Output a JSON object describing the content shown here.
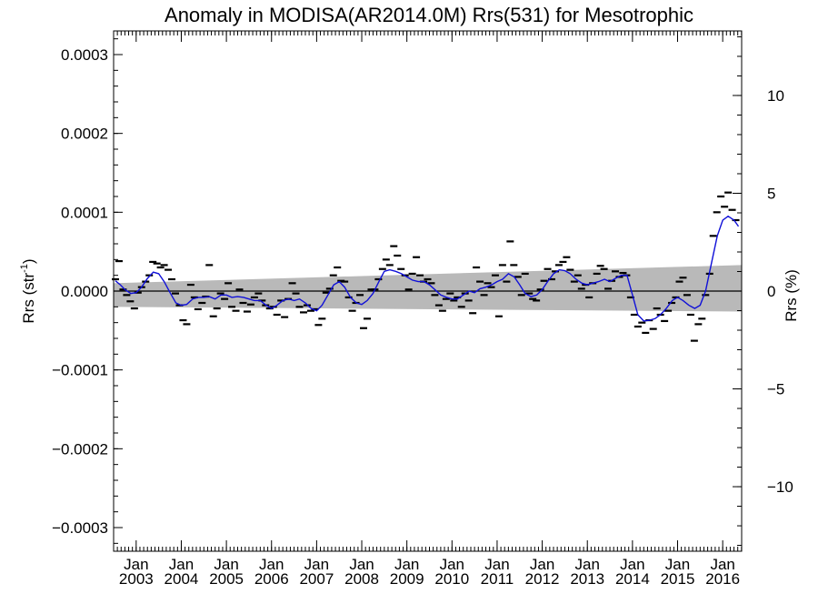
{
  "chart_data": {
    "type": "scatter",
    "title": "Anomaly in MODISA(AR2014.0M) Rrs(531) for Mesotrophic",
    "ylabel_left": "Rrs (str",
    "ylabel_left_sup": "-1",
    "ylabel_left_end": ")",
    "ylabel_right": "Rrs (%)",
    "xlim": [
      2002.5,
      2016.42
    ],
    "ylim": [
      -0.00033,
      0.00033
    ],
    "ylim_right": [
      -13.3,
      13.3
    ],
    "left_ticks": [
      {
        "value": 0.0003,
        "label": "0.0003"
      },
      {
        "value": 0.0002,
        "label": "0.0002"
      },
      {
        "value": 0.0001,
        "label": "0.0001"
      },
      {
        "value": 0.0,
        "label": "0.0000"
      },
      {
        "value": -0.0001,
        "label": "−0.0001"
      },
      {
        "value": -0.0002,
        "label": "−0.0002"
      },
      {
        "value": -0.0003,
        "label": "−0.0003"
      }
    ],
    "right_ticks": [
      {
        "value": 10,
        "label": "10"
      },
      {
        "value": 5,
        "label": "5"
      },
      {
        "value": 0,
        "label": "0"
      },
      {
        "value": -5,
        "label": "−5"
      },
      {
        "value": -10,
        "label": "−10"
      }
    ],
    "x_ticks": [
      {
        "value": 2003,
        "month": "Jan",
        "year": "2003"
      },
      {
        "value": 2004,
        "month": "Jan",
        "year": "2004"
      },
      {
        "value": 2005,
        "month": "Jan",
        "year": "2005"
      },
      {
        "value": 2006,
        "month": "Jan",
        "year": "2006"
      },
      {
        "value": 2007,
        "month": "Jan",
        "year": "2007"
      },
      {
        "value": 2008,
        "month": "Jan",
        "year": "2008"
      },
      {
        "value": 2009,
        "month": "Jan",
        "year": "2009"
      },
      {
        "value": 2010,
        "month": "Jan",
        "year": "2010"
      },
      {
        "value": 2011,
        "month": "Jan",
        "year": "2011"
      },
      {
        "value": 2012,
        "month": "Jan",
        "year": "2012"
      },
      {
        "value": 2013,
        "month": "Jan",
        "year": "2013"
      },
      {
        "value": 2014,
        "month": "Jan",
        "year": "2014"
      },
      {
        "value": 2015,
        "month": "Jan",
        "year": "2015"
      },
      {
        "value": 2016,
        "month": "Jan",
        "year": "2016"
      }
    ],
    "monthly_anomalies": [
      {
        "t": 2002.54,
        "y": 1.5e-05
      },
      {
        "t": 2002.62,
        "y": 3.8e-05
      },
      {
        "t": 2002.71,
        "y": 2e-06
      },
      {
        "t": 2002.79,
        "y": -5e-06
      },
      {
        "t": 2002.87,
        "y": -1.3e-05
      },
      {
        "t": 2002.96,
        "y": -2.2e-05
      },
      {
        "t": 2003.04,
        "y": -2e-06
      },
      {
        "t": 2003.12,
        "y": 5e-06
      },
      {
        "t": 2003.21,
        "y": 1.2e-05
      },
      {
        "t": 2003.29,
        "y": 2e-05
      },
      {
        "t": 2003.37,
        "y": 3.7e-05
      },
      {
        "t": 2003.46,
        "y": 3.5e-05
      },
      {
        "t": 2003.54,
        "y": 3e-05
      },
      {
        "t": 2003.62,
        "y": 3.3e-05
      },
      {
        "t": 2003.71,
        "y": 2.7e-05
      },
      {
        "t": 2003.79,
        "y": 1.5e-05
      },
      {
        "t": 2003.87,
        "y": -3e-06
      },
      {
        "t": 2003.96,
        "y": -1.8e-05
      },
      {
        "t": 2004.04,
        "y": -3.7e-05
      },
      {
        "t": 2004.12,
        "y": -4.2e-05
      },
      {
        "t": 2004.21,
        "y": 8e-06
      },
      {
        "t": 2004.29,
        "y": -8e-06
      },
      {
        "t": 2004.37,
        "y": -2.3e-05
      },
      {
        "t": 2004.46,
        "y": -1.5e-05
      },
      {
        "t": 2004.54,
        "y": -7e-06
      },
      {
        "t": 2004.62,
        "y": 3.3e-05
      },
      {
        "t": 2004.71,
        "y": -3.2e-05
      },
      {
        "t": 2004.79,
        "y": -2.2e-05
      },
      {
        "t": 2004.87,
        "y": -3e-06
      },
      {
        "t": 2004.96,
        "y": -1e-05
      },
      {
        "t": 2005.04,
        "y": 1e-05
      },
      {
        "t": 2005.12,
        "y": -2e-05
      },
      {
        "t": 2005.21,
        "y": -2.5e-05
      },
      {
        "t": 2005.29,
        "y": 2e-06
      },
      {
        "t": 2005.37,
        "y": -1.5e-05
      },
      {
        "t": 2005.46,
        "y": -2.6e-05
      },
      {
        "t": 2005.54,
        "y": -1.7e-05
      },
      {
        "t": 2005.62,
        "y": -8e-06
      },
      {
        "t": 2005.71,
        "y": -3e-06
      },
      {
        "t": 2005.79,
        "y": -1.2e-05
      },
      {
        "t": 2005.87,
        "y": -1.8e-05
      },
      {
        "t": 2005.96,
        "y": -2.2e-05
      },
      {
        "t": 2006.04,
        "y": -2e-05
      },
      {
        "t": 2006.12,
        "y": -3e-05
      },
      {
        "t": 2006.21,
        "y": -1.2e-05
      },
      {
        "t": 2006.29,
        "y": -3.3e-05
      },
      {
        "t": 2006.37,
        "y": -1e-05
      },
      {
        "t": 2006.46,
        "y": 1e-05
      },
      {
        "t": 2006.54,
        "y": -3e-06
      },
      {
        "t": 2006.62,
        "y": -2e-05
      },
      {
        "t": 2006.71,
        "y": -2.7e-05
      },
      {
        "t": 2006.79,
        "y": -1.8e-05
      },
      {
        "t": 2006.87,
        "y": -2.5e-05
      },
      {
        "t": 2006.96,
        "y": -2.3e-05
      },
      {
        "t": 2007.04,
        "y": -4.3e-05
      },
      {
        "t": 2007.12,
        "y": -3.5e-05
      },
      {
        "t": 2007.21,
        "y": -2e-06
      },
      {
        "t": 2007.29,
        "y": 3e-06
      },
      {
        "t": 2007.37,
        "y": 2e-05
      },
      {
        "t": 2007.46,
        "y": 3e-05
      },
      {
        "t": 2007.54,
        "y": 1.3e-05
      },
      {
        "t": 2007.62,
        "y": 1.2e-05
      },
      {
        "t": 2007.71,
        "y": -8e-06
      },
      {
        "t": 2007.79,
        "y": -2.5e-05
      },
      {
        "t": 2007.87,
        "y": -1.5e-05
      },
      {
        "t": 2007.96,
        "y": -5e-06
      },
      {
        "t": 2008.04,
        "y": -4.7e-05
      },
      {
        "t": 2008.12,
        "y": -3.5e-05
      },
      {
        "t": 2008.21,
        "y": 2e-06
      },
      {
        "t": 2008.29,
        "y": 2e-06
      },
      {
        "t": 2008.37,
        "y": 1.5e-05
      },
      {
        "t": 2008.46,
        "y": 2.8e-05
      },
      {
        "t": 2008.54,
        "y": 4e-05
      },
      {
        "t": 2008.62,
        "y": 3.3e-05
      },
      {
        "t": 2008.71,
        "y": 5.7e-05
      },
      {
        "t": 2008.79,
        "y": 4.5e-05
      },
      {
        "t": 2008.87,
        "y": 2.8e-05
      },
      {
        "t": 2008.96,
        "y": 2e-05
      },
      {
        "t": 2009.04,
        "y": 2e-06
      },
      {
        "t": 2009.12,
        "y": 2.2e-05
      },
      {
        "t": 2009.21,
        "y": 4.3e-05
      },
      {
        "t": 2009.29,
        "y": 2e-05
      },
      {
        "t": 2009.37,
        "y": 1.2e-05
      },
      {
        "t": 2009.46,
        "y": 1.5e-05
      },
      {
        "t": 2009.54,
        "y": 1e-05
      },
      {
        "t": 2009.62,
        "y": -5e-06
      },
      {
        "t": 2009.71,
        "y": -1.8e-05
      },
      {
        "t": 2009.79,
        "y": -2.5e-05
      },
      {
        "t": 2009.87,
        "y": -1e-05
      },
      {
        "t": 2009.96,
        "y": -3e-06
      },
      {
        "t": 2010.04,
        "y": -1.2e-05
      },
      {
        "t": 2010.12,
        "y": -8e-06
      },
      {
        "t": 2010.21,
        "y": -2e-05
      },
      {
        "t": 2010.29,
        "y": -3e-06
      },
      {
        "t": 2010.37,
        "y": -1.2e-05
      },
      {
        "t": 2010.46,
        "y": -2.8e-05
      },
      {
        "t": 2010.54,
        "y": 3e-05
      },
      {
        "t": 2010.62,
        "y": 1.2e-05
      },
      {
        "t": 2010.71,
        "y": -5e-06
      },
      {
        "t": 2010.79,
        "y": 1e-05
      },
      {
        "t": 2010.87,
        "y": 5e-06
      },
      {
        "t": 2010.96,
        "y": 2e-05
      },
      {
        "t": 2011.04,
        "y": -3.2e-05
      },
      {
        "t": 2011.12,
        "y": 3.3e-05
      },
      {
        "t": 2011.21,
        "y": 1.2e-05
      },
      {
        "t": 2011.29,
        "y": 6.3e-05
      },
      {
        "t": 2011.37,
        "y": 3.3e-05
      },
      {
        "t": 2011.46,
        "y": 1.8e-05
      },
      {
        "t": 2011.54,
        "y": -5e-06
      },
      {
        "t": 2011.62,
        "y": 2.2e-05
      },
      {
        "t": 2011.71,
        "y": -3e-06
      },
      {
        "t": 2011.79,
        "y": -1e-05
      },
      {
        "t": 2011.87,
        "y": -1.2e-05
      },
      {
        "t": 2011.96,
        "y": 2e-06
      },
      {
        "t": 2012.04,
        "y": 1.3e-05
      },
      {
        "t": 2012.12,
        "y": 2.8e-05
      },
      {
        "t": 2012.21,
        "y": 1.5e-05
      },
      {
        "t": 2012.29,
        "y": 2.5e-05
      },
      {
        "t": 2012.37,
        "y": 3.3e-05
      },
      {
        "t": 2012.46,
        "y": 3.7e-05
      },
      {
        "t": 2012.54,
        "y": 4.3e-05
      },
      {
        "t": 2012.62,
        "y": 2.7e-05
      },
      {
        "t": 2012.71,
        "y": 1.2e-05
      },
      {
        "t": 2012.79,
        "y": 2e-05
      },
      {
        "t": 2012.87,
        "y": 3e-06
      },
      {
        "t": 2012.96,
        "y": 8e-06
      },
      {
        "t": 2013.04,
        "y": -8e-06
      },
      {
        "t": 2013.12,
        "y": 1e-05
      },
      {
        "t": 2013.21,
        "y": 2.2e-05
      },
      {
        "t": 2013.29,
        "y": 3.2e-05
      },
      {
        "t": 2013.37,
        "y": 2.8e-05
      },
      {
        "t": 2013.46,
        "y": 3e-06
      },
      {
        "t": 2013.54,
        "y": 1.3e-05
      },
      {
        "t": 2013.62,
        "y": 2.5e-05
      },
      {
        "t": 2013.71,
        "y": 1.8e-05
      },
      {
        "t": 2013.79,
        "y": 2.3e-05
      },
      {
        "t": 2013.87,
        "y": 2e-05
      },
      {
        "t": 2013.96,
        "y": -8e-06
      },
      {
        "t": 2014.04,
        "y": -3e-05
      },
      {
        "t": 2014.12,
        "y": -4.5e-05
      },
      {
        "t": 2014.21,
        "y": -4e-05
      },
      {
        "t": 2014.29,
        "y": -5.3e-05
      },
      {
        "t": 2014.37,
        "y": -3.7e-05
      },
      {
        "t": 2014.46,
        "y": -4.8e-05
      },
      {
        "t": 2014.54,
        "y": -2.2e-05
      },
      {
        "t": 2014.62,
        "y": -3e-05
      },
      {
        "t": 2014.71,
        "y": -3.8e-05
      },
      {
        "t": 2014.79,
        "y": -2.5e-05
      },
      {
        "t": 2014.87,
        "y": -1.5e-05
      },
      {
        "t": 2014.96,
        "y": -8e-06
      },
      {
        "t": 2015.04,
        "y": 1.2e-05
      },
      {
        "t": 2015.12,
        "y": 1.7e-05
      },
      {
        "t": 2015.21,
        "y": -5e-06
      },
      {
        "t": 2015.29,
        "y": -3e-05
      },
      {
        "t": 2015.37,
        "y": -6.3e-05
      },
      {
        "t": 2015.46,
        "y": -4.2e-05
      },
      {
        "t": 2015.54,
        "y": -3.5e-05
      },
      {
        "t": 2015.62,
        "y": -5e-06
      },
      {
        "t": 2015.71,
        "y": 2.2e-05
      },
      {
        "t": 2015.79,
        "y": 7e-05
      },
      {
        "t": 2015.87,
        "y": 0.0001
      },
      {
        "t": 2015.96,
        "y": 0.00012
      },
      {
        "t": 2016.04,
        "y": 0.000107
      },
      {
        "t": 2016.12,
        "y": 0.000125
      },
      {
        "t": 2016.21,
        "y": 0.000103
      },
      {
        "t": 2016.29,
        "y": 9e-05
      }
    ],
    "smoothed_series": {
      "color": "#1010d8",
      "points": [
        [
          2002.54,
          1.3e-05
        ],
        [
          2002.65,
          8e-06
        ],
        [
          2002.75,
          2e-06
        ],
        [
          2002.88,
          -3e-06
        ],
        [
          2003.0,
          -2e-06
        ],
        [
          2003.12,
          5e-06
        ],
        [
          2003.25,
          1.6e-05
        ],
        [
          2003.38,
          2.4e-05
        ],
        [
          2003.5,
          2.2e-05
        ],
        [
          2003.62,
          1.2e-05
        ],
        [
          2003.75,
          -2e-06
        ],
        [
          2003.88,
          -1.5e-05
        ],
        [
          2004.0,
          -1.8e-05
        ],
        [
          2004.12,
          -1.7e-05
        ],
        [
          2004.25,
          -1e-05
        ],
        [
          2004.38,
          -8e-06
        ],
        [
          2004.5,
          -8e-06
        ],
        [
          2004.62,
          -7e-06
        ],
        [
          2004.75,
          -1e-05
        ],
        [
          2004.88,
          -5e-06
        ],
        [
          2005.0,
          -5e-06
        ],
        [
          2005.12,
          -8e-06
        ],
        [
          2005.25,
          -7e-06
        ],
        [
          2005.38,
          -8e-06
        ],
        [
          2005.5,
          -1e-05
        ],
        [
          2005.62,
          -1.2e-05
        ],
        [
          2005.75,
          -1.2e-05
        ],
        [
          2005.88,
          -1.8e-05
        ],
        [
          2006.0,
          -2.2e-05
        ],
        [
          2006.12,
          -1.8e-05
        ],
        [
          2006.25,
          -1.2e-05
        ],
        [
          2006.38,
          -1e-05
        ],
        [
          2006.5,
          -1.2e-05
        ],
        [
          2006.62,
          -1e-05
        ],
        [
          2006.75,
          -1.5e-05
        ],
        [
          2006.88,
          -2.2e-05
        ],
        [
          2007.0,
          -2.5e-05
        ],
        [
          2007.12,
          -1.8e-05
        ],
        [
          2007.25,
          -5e-06
        ],
        [
          2007.38,
          8e-06
        ],
        [
          2007.5,
          1.2e-05
        ],
        [
          2007.62,
          5e-06
        ],
        [
          2007.75,
          -8e-06
        ],
        [
          2007.88,
          -1.5e-05
        ],
        [
          2008.0,
          -1.7e-05
        ],
        [
          2008.12,
          -1.2e-05
        ],
        [
          2008.25,
          -3e-06
        ],
        [
          2008.38,
          1.2e-05
        ],
        [
          2008.5,
          2.5e-05
        ],
        [
          2008.62,
          2.7e-05
        ],
        [
          2008.75,
          2.5e-05
        ],
        [
          2008.88,
          2.2e-05
        ],
        [
          2009.0,
          1.8e-05
        ],
        [
          2009.12,
          1.4e-05
        ],
        [
          2009.25,
          1.2e-05
        ],
        [
          2009.38,
          1.2e-05
        ],
        [
          2009.5,
          8e-06
        ],
        [
          2009.62,
          2e-06
        ],
        [
          2009.75,
          -5e-06
        ],
        [
          2009.88,
          -8e-06
        ],
        [
          2010.0,
          -1e-05
        ],
        [
          2010.12,
          -1e-05
        ],
        [
          2010.25,
          -5e-06
        ],
        [
          2010.38,
          0.0
        ],
        [
          2010.5,
          -2e-06
        ],
        [
          2010.62,
          3e-06
        ],
        [
          2010.75,
          5e-06
        ],
        [
          2010.88,
          8e-06
        ],
        [
          2011.0,
          1.2e-05
        ],
        [
          2011.12,
          1.5e-05
        ],
        [
          2011.25,
          2.2e-05
        ],
        [
          2011.38,
          1.8e-05
        ],
        [
          2011.5,
          8e-06
        ],
        [
          2011.62,
          -3e-06
        ],
        [
          2011.75,
          -7e-06
        ],
        [
          2011.88,
          -5e-06
        ],
        [
          2012.0,
          2e-06
        ],
        [
          2012.12,
          1.2e-05
        ],
        [
          2012.25,
          2.2e-05
        ],
        [
          2012.38,
          2.7e-05
        ],
        [
          2012.5,
          2.6e-05
        ],
        [
          2012.62,
          2.2e-05
        ],
        [
          2012.75,
          1.5e-05
        ],
        [
          2012.88,
          1e-05
        ],
        [
          2013.0,
          8e-06
        ],
        [
          2013.12,
          1e-05
        ],
        [
          2013.25,
          1.2e-05
        ],
        [
          2013.38,
          1.5e-05
        ],
        [
          2013.5,
          1.2e-05
        ],
        [
          2013.62,
          1.6e-05
        ],
        [
          2013.75,
          2e-05
        ],
        [
          2013.88,
          2e-05
        ],
        [
          2014.0,
          -5e-06
        ],
        [
          2014.12,
          -3e-05
        ],
        [
          2014.25,
          -3.8e-05
        ],
        [
          2014.38,
          -3.7e-05
        ],
        [
          2014.5,
          -3.5e-05
        ],
        [
          2014.62,
          -3e-05
        ],
        [
          2014.75,
          -2.2e-05
        ],
        [
          2014.88,
          -1.2e-05
        ],
        [
          2015.0,
          -8e-06
        ],
        [
          2015.12,
          -1.2e-05
        ],
        [
          2015.25,
          -1.8e-05
        ],
        [
          2015.38,
          -2.2e-05
        ],
        [
          2015.5,
          -1.8e-05
        ],
        [
          2015.62,
          0.0
        ],
        [
          2015.75,
          3.5e-05
        ],
        [
          2015.88,
          7e-05
        ],
        [
          2016.0,
          9e-05
        ],
        [
          2016.12,
          9.5e-05
        ],
        [
          2016.25,
          9e-05
        ],
        [
          2016.35,
          8.2e-05
        ]
      ]
    },
    "trend_band": {
      "color": "#b9b9b9",
      "left_upper": 1e-05,
      "left_lower": -2e-05,
      "right_upper": 3.3e-05,
      "right_lower": -2.6e-05
    },
    "zero_line": true,
    "grid": false
  }
}
